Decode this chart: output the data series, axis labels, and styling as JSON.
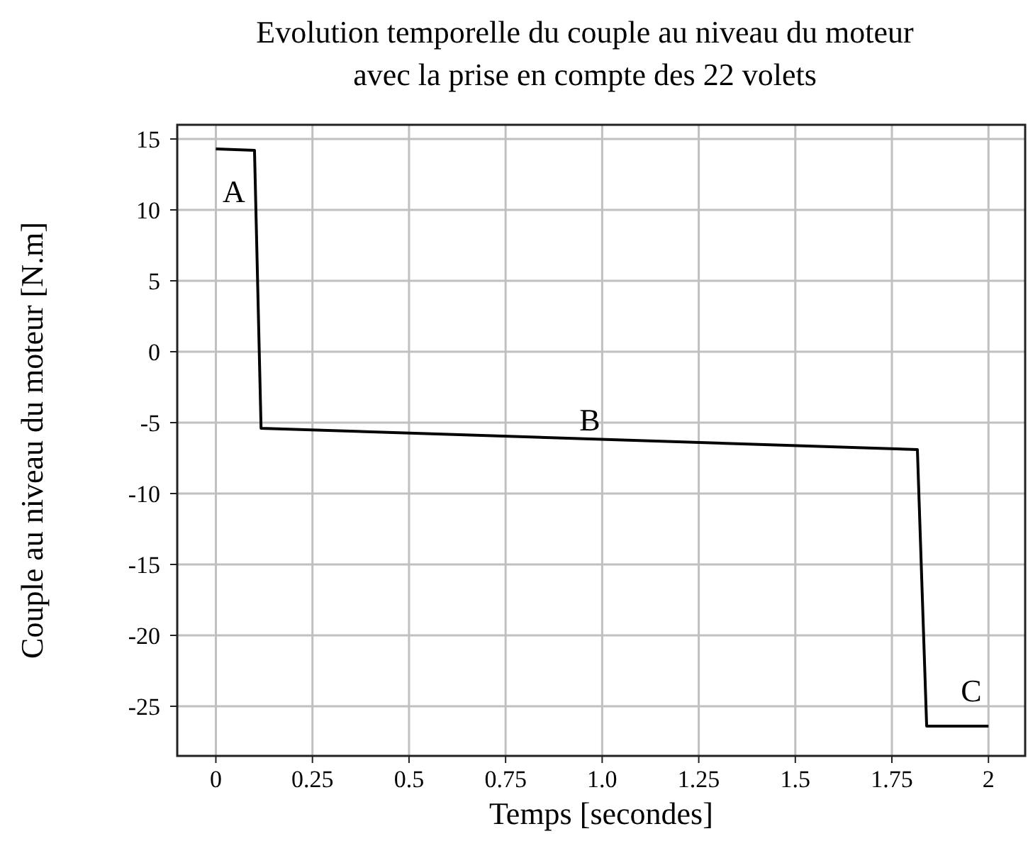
{
  "chart_data": {
    "type": "line",
    "title": "Evolution temporelle du couple au niveau du moteur\navec la prise en compte des 22 volets",
    "xlabel": "Temps [secondes]",
    "ylabel": "Couple au niveau du moteur [N.m]",
    "x": [
      0,
      0.1,
      0.117,
      1.816,
      1.84,
      2
    ],
    "series": [
      {
        "color": "#000000",
        "values": [
          14.3,
          14.2,
          -5.4,
          -6.9,
          -26.4,
          -26.4
        ]
      }
    ],
    "xlim": [
      -0.1,
      2.095
    ],
    "ylim": [
      -28.5,
      16
    ],
    "xticks": [
      0,
      0.25,
      0.5,
      0.75,
      {
        "value": 1,
        "label": "1.0"
      },
      1.25,
      1.5,
      1.75,
      2
    ],
    "yticks": [
      -25,
      -20,
      -15,
      -10,
      -5,
      0,
      5,
      10,
      15
    ],
    "grid": true,
    "line_style": "solid",
    "marker": "none",
    "annotations": [
      "A",
      "B",
      "C"
    ]
  }
}
